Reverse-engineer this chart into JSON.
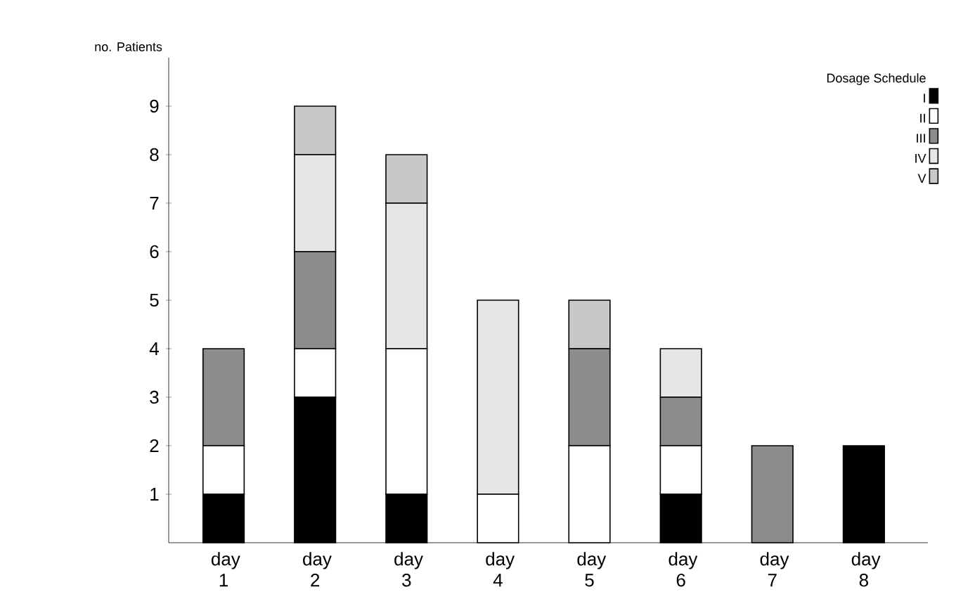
{
  "chart_data": {
    "type": "bar",
    "stacked": true,
    "ylabel": "no. Patients",
    "legend_title": "Dosage Schedule",
    "legend": "top right",
    "categories": [
      "day 1",
      "day 2",
      "day 3",
      "day 4",
      "day 5",
      "day 6",
      "day 7",
      "day 8"
    ],
    "series": [
      {
        "name": "I",
        "color": "#000000",
        "values": [
          1,
          3,
          1,
          0,
          0,
          1,
          0,
          2
        ]
      },
      {
        "name": "II",
        "color": "#ffffff",
        "values": [
          1,
          1,
          3,
          1,
          2,
          1,
          0,
          0
        ]
      },
      {
        "name": "III",
        "color": "#8c8c8c",
        "values": [
          2,
          2,
          0,
          0,
          2,
          1,
          2,
          0
        ]
      },
      {
        "name": "IV",
        "color": "#e6e6e6",
        "values": [
          0,
          2,
          3,
          4,
          0,
          1,
          0,
          0
        ]
      },
      {
        "name": "V",
        "color": "#c8c8c8",
        "values": [
          0,
          1,
          1,
          0,
          1,
          0,
          0,
          0
        ]
      }
    ],
    "ylim": [
      0,
      10
    ],
    "yticks": [
      1,
      2,
      3,
      4,
      5,
      6,
      7,
      8,
      9
    ],
    "grid": false
  }
}
